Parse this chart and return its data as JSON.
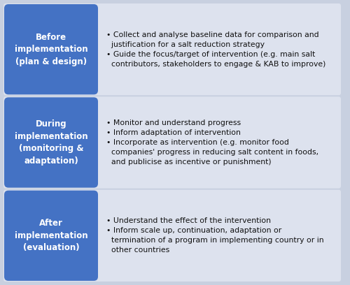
{
  "background_color": "#c8d0e0",
  "box_color": "#4472c4",
  "row_bg_color": "#dde2ee",
  "text_color_box": "#ffffff",
  "text_color_bullets": "#111111",
  "rows": [
    {
      "label": "Before\nimplementation\n(plan & design)",
      "bullets": [
        "Collect and analyse baseline data for comparison and\n  justification for a salt reduction strategy",
        "Guide the focus/target of intervention (e.g. main salt\n  contributors, stakeholders to engage & KAB to improve)"
      ]
    },
    {
      "label": "During\nimplementation\n(monitoring &\nadaptation)",
      "bullets": [
        "Monitor and understand progress",
        "Inform adaptation of intervention",
        "Incorporate as intervention (e.g. monitor food\n  companies' progress in reducing salt content in foods,\n  and publicise as incentive or punishment)"
      ]
    },
    {
      "label": "After\nimplementation\n(evaluation)",
      "bullets": [
        "Understand the effect of the intervention",
        "Inform scale up, continuation, adaptation or\n  termination of a program in implementing country or in\n  other countries"
      ]
    }
  ],
  "figsize": [
    5.0,
    4.08
  ],
  "dpi": 100
}
